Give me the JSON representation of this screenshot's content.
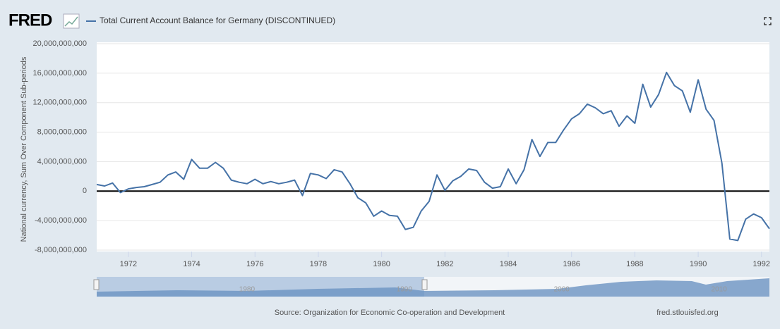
{
  "brand": "FRED",
  "source": "Source: Organization for Economic Co-operation and Development",
  "site": "fred.stlouisfed.org",
  "navigator": {
    "xlim": [
      1970.45,
      2013.2
    ],
    "xticks": [
      1980,
      1990,
      2000,
      2010
    ]
  },
  "chart_data": {
    "type": "line",
    "series": [
      {
        "name": "Total Current Account Balance for Germany (DISCONTINUED)",
        "color": "#4572a7",
        "values": [
          900000000,
          700000000,
          1100000000,
          -200000000,
          300000000,
          500000000,
          600000000,
          900000000,
          1200000000,
          2200000000,
          2600000000,
          1600000000,
          4300000000,
          3100000000,
          3100000000,
          3900000000,
          3100000000,
          1500000000,
          1200000000,
          1000000000,
          1600000000,
          1000000000,
          1300000000,
          1000000000,
          1200000000,
          1500000000,
          -600000000,
          2400000000,
          2200000000,
          1700000000,
          2900000000,
          2600000000,
          1000000000,
          -900000000,
          -1600000000,
          -3400000000,
          -2700000000,
          -3300000000,
          -3400000000,
          -5200000000,
          -4900000000,
          -2700000000,
          -1400000000,
          2200000000,
          100000000,
          1400000000,
          2000000000,
          3000000000,
          2800000000,
          1200000000,
          400000000,
          600000000,
          3000000000,
          1000000000,
          2900000000,
          7000000000,
          4700000000,
          6600000000,
          6600000000,
          8300000000,
          9800000000,
          10500000000,
          11800000000,
          11300000000,
          10500000000,
          10900000000,
          8800000000,
          10200000000,
          9200000000,
          14500000000,
          11400000000,
          13100000000,
          16100000000,
          14300000000,
          13600000000,
          10700000000,
          15100000000,
          11100000000,
          9600000000,
          3800000000,
          -6500000000,
          -6700000000,
          -3800000000,
          -3100000000,
          -3600000000,
          -5100000000
        ]
      }
    ],
    "x": [
      1971,
      1971.25,
      1971.5,
      1971.75,
      1972,
      1972.25,
      1972.5,
      1972.75,
      1973,
      1973.25,
      1973.5,
      1973.75,
      1974,
      1974.25,
      1974.5,
      1974.75,
      1975,
      1975.25,
      1975.5,
      1975.75,
      1976,
      1976.25,
      1976.5,
      1976.75,
      1977,
      1977.25,
      1977.5,
      1977.75,
      1978,
      1978.25,
      1978.5,
      1978.75,
      1979,
      1979.25,
      1979.5,
      1979.75,
      1980,
      1980.25,
      1980.5,
      1980.75,
      1981,
      1981.25,
      1981.5,
      1981.75,
      1982,
      1982.25,
      1982.5,
      1982.75,
      1983,
      1983.25,
      1983.5,
      1983.75,
      1984,
      1984.25,
      1984.5,
      1984.75,
      1985,
      1985.25,
      1985.5,
      1985.75,
      1986,
      1986.25,
      1986.5,
      1986.75,
      1987,
      1987.25,
      1987.5,
      1987.75,
      1988,
      1988.25,
      1988.5,
      1988.75,
      1989,
      1989.25,
      1989.5,
      1989.75,
      1990,
      1990.25,
      1990.5,
      1990.75,
      1991,
      1991.25,
      1991.5,
      1991.75,
      1992,
      1992.25
    ],
    "y_label": "National currency, Sum Over Component Sub-periods",
    "xlim": [
      1971,
      1992.25
    ],
    "xticks": [
      1972,
      1974,
      1976,
      1978,
      1980,
      1982,
      1984,
      1986,
      1988,
      1990,
      1992
    ],
    "ylim": [
      -8000000000,
      20000000000
    ],
    "yticks": [
      {
        "value": -8000000000,
        "label": "-8,000,000,000"
      },
      {
        "value": -4000000000,
        "label": "-4,000,000,000"
      },
      0,
      {
        "value": 4000000000,
        "label": "4,000,000,000"
      },
      {
        "value": 8000000000,
        "label": "8,000,000,000"
      },
      {
        "value": 12000000000,
        "label": "12,000,000,000"
      },
      {
        "value": 16000000000,
        "label": "16,000,000,000"
      },
      {
        "value": 20000000000,
        "label": "20,000,000,000"
      }
    ],
    "grid": true
  }
}
